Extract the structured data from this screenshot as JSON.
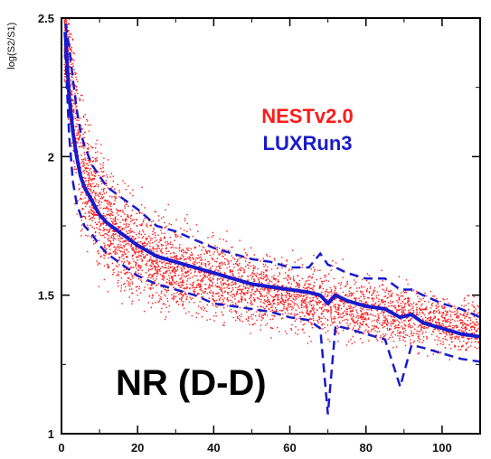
{
  "chart_data": {
    "type": "scatter",
    "title": "",
    "xlabel": "",
    "ylabel": "log(S2/S1)",
    "xlim": [
      0,
      110
    ],
    "ylim": [
      1,
      2.5
    ],
    "xticks": [
      0,
      20,
      40,
      60,
      80,
      100
    ],
    "yticks": [
      1,
      1.5,
      2,
      2.5
    ],
    "ytick_labels": [
      "1",
      "1.5",
      "2",
      "2.5"
    ],
    "grid": false,
    "legend": {
      "placement": "top-right",
      "entries": [
        {
          "label": "NESTv2.0",
          "color": "#ff1a1a"
        },
        {
          "label": "LUXRun3",
          "color": "#1a1acc"
        }
      ]
    },
    "annotation": "NR (D-D)",
    "series": [
      {
        "name": "NESTv2.0",
        "kind": "scatter-cloud",
        "color": "#ff1a1a",
        "x": [
          1,
          2,
          3,
          4,
          5,
          6,
          8,
          10,
          12,
          15,
          20,
          25,
          30,
          35,
          40,
          45,
          50,
          55,
          60,
          65,
          70,
          75,
          80,
          85,
          90,
          95,
          100,
          105,
          110
        ],
        "y_center": [
          2.45,
          2.3,
          2.17,
          2.07,
          2.0,
          1.94,
          1.86,
          1.8,
          1.76,
          1.71,
          1.66,
          1.62,
          1.6,
          1.58,
          1.56,
          1.54,
          1.53,
          1.51,
          1.5,
          1.48,
          1.47,
          1.46,
          1.45,
          1.44,
          1.43,
          1.42,
          1.4,
          1.39,
          1.38
        ],
        "y_spread": [
          0.15,
          0.2,
          0.22,
          0.22,
          0.21,
          0.2,
          0.19,
          0.18,
          0.17,
          0.16,
          0.15,
          0.14,
          0.13,
          0.13,
          0.12,
          0.12,
          0.12,
          0.11,
          0.11,
          0.11,
          0.1,
          0.1,
          0.1,
          0.1,
          0.1,
          0.1,
          0.09,
          0.09,
          0.09
        ]
      },
      {
        "name": "LUXRun3",
        "kind": "mean-with-band",
        "color": "#1a1acc",
        "x": [
          1,
          2,
          3,
          4,
          5,
          6,
          8,
          10,
          12,
          15,
          20,
          25,
          30,
          35,
          40,
          45,
          50,
          55,
          60,
          65,
          68,
          70,
          72,
          75,
          80,
          85,
          89,
          92,
          95,
          100,
          105,
          110
        ],
        "mean": [
          2.45,
          2.22,
          2.09,
          2.0,
          1.93,
          1.89,
          1.84,
          1.79,
          1.76,
          1.73,
          1.68,
          1.64,
          1.62,
          1.6,
          1.58,
          1.56,
          1.54,
          1.53,
          1.52,
          1.51,
          1.5,
          1.47,
          1.5,
          1.48,
          1.46,
          1.45,
          1.42,
          1.43,
          1.4,
          1.38,
          1.36,
          1.35
        ],
        "upper": [
          2.48,
          2.4,
          2.28,
          2.17,
          2.09,
          2.04,
          1.97,
          1.93,
          1.89,
          1.86,
          1.81,
          1.75,
          1.73,
          1.7,
          1.67,
          1.65,
          1.63,
          1.62,
          1.6,
          1.6,
          1.65,
          1.61,
          1.6,
          1.58,
          1.56,
          1.56,
          1.52,
          1.52,
          1.5,
          1.47,
          1.45,
          1.42
        ],
        "lower": [
          2.38,
          2.08,
          1.91,
          1.83,
          1.79,
          1.75,
          1.72,
          1.68,
          1.65,
          1.62,
          1.57,
          1.54,
          1.52,
          1.5,
          1.47,
          1.46,
          1.45,
          1.44,
          1.42,
          1.41,
          1.38,
          1.07,
          1.39,
          1.38,
          1.36,
          1.34,
          1.17,
          1.32,
          1.31,
          1.29,
          1.27,
          1.26
        ]
      }
    ]
  }
}
